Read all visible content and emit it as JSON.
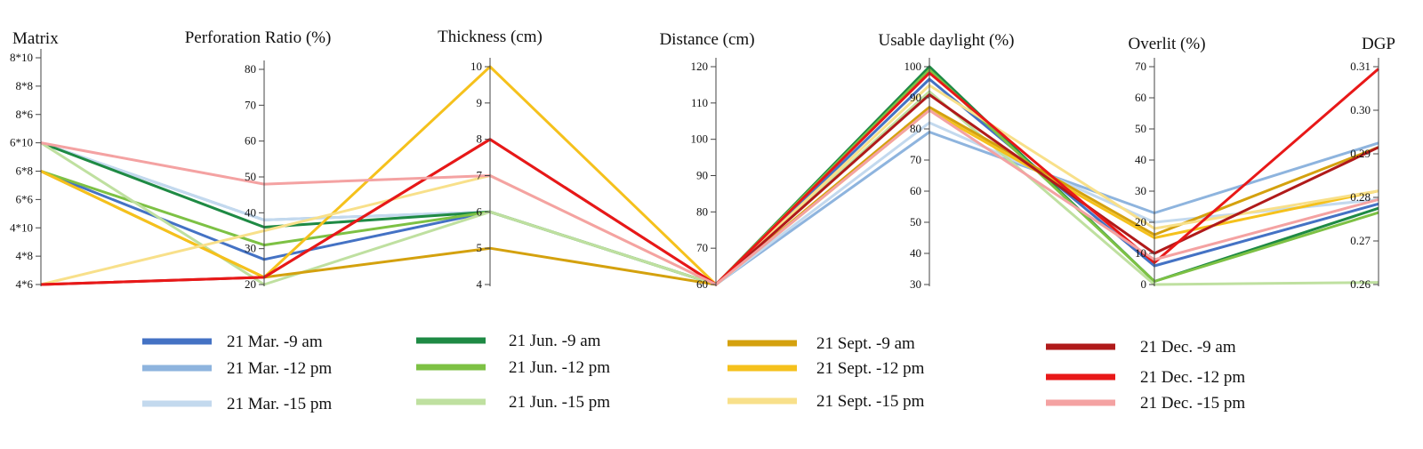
{
  "chart_data": {
    "type": "parallel-coordinates",
    "axes": [
      {
        "title": "Matrix",
        "kind": "category",
        "ticks": [
          "8*10",
          "8*8",
          "8*6",
          "6*10",
          "6*8",
          "6*6",
          "4*10",
          "4*8",
          "4*6"
        ]
      },
      {
        "title": "Perforation Ratio (%)",
        "kind": "numeric",
        "range": [
          20,
          80
        ],
        "ticks": [
          "80",
          "70",
          "60",
          "50",
          "40",
          "30",
          "20"
        ]
      },
      {
        "title": "Thickness (cm)",
        "kind": "numeric",
        "range": [
          4,
          10
        ],
        "ticks": [
          "10",
          "9",
          "8",
          "7",
          "6",
          "5",
          "4"
        ]
      },
      {
        "title": "Distance (cm)",
        "kind": "numeric",
        "range": [
          60,
          120
        ],
        "ticks": [
          "120",
          "110",
          "100",
          "90",
          "80",
          "70",
          "60"
        ]
      },
      {
        "title": "Usable daylight (%)",
        "kind": "numeric",
        "range": [
          30,
          100
        ],
        "ticks": [
          "100",
          "90",
          "80",
          "70",
          "60",
          "50",
          "40",
          "30"
        ]
      },
      {
        "title": "Overlit (%)",
        "kind": "numeric",
        "range": [
          0,
          70
        ],
        "ticks": [
          "70",
          "60",
          "50",
          "40",
          "30",
          "20",
          "10",
          "0"
        ]
      },
      {
        "title": "DGP",
        "kind": "numeric",
        "range": [
          0.26,
          0.31
        ],
        "ticks": [
          "0.31",
          "0.30",
          "0.29",
          "0.28",
          "0.27",
          "0.26"
        ]
      }
    ],
    "series": [
      {
        "name": "21 Mar. -9 am",
        "color": "#4472c4",
        "values": [
          4,
          27,
          6,
          60,
          96,
          6,
          0.2785
        ]
      },
      {
        "name": "21 Mar. -12 pm",
        "color": "#8eb4de",
        "values": [
          5,
          38,
          6,
          60,
          79,
          23,
          0.2925
        ]
      },
      {
        "name": "21 Mar. -15 pm",
        "color": "#c3d9ee",
        "values": [
          5,
          38,
          6,
          60,
          82,
          20,
          0.2795
        ]
      },
      {
        "name": "21 Jun. -9 am",
        "color": "#1e8a44",
        "values": [
          5,
          36,
          6,
          60,
          100,
          1,
          0.2775
        ]
      },
      {
        "name": "21 Jun. -12 pm",
        "color": "#7dc144",
        "values": [
          4,
          31,
          6,
          60,
          99,
          1,
          0.2765
        ]
      },
      {
        "name": "21 Jun. -15 pm",
        "color": "#bfe0a0",
        "values": [
          5,
          20,
          6,
          60,
          92,
          0,
          0.2605
        ]
      },
      {
        "name": "21 Sept. -9 am",
        "color": "#d4a10e",
        "values": [
          4,
          22,
          5,
          60,
          87,
          16,
          0.2915
        ]
      },
      {
        "name": "21 Sept. -12 pm",
        "color": "#f5c11c",
        "values": [
          4,
          22,
          10,
          60,
          86,
          15,
          0.2815
        ]
      },
      {
        "name": "21 Sept. -15 pm",
        "color": "#f8e08a",
        "values": [
          0,
          35,
          7,
          60,
          94,
          18,
          0.2815
        ]
      },
      {
        "name": "21 Dec. -9 am",
        "color": "#b01a1a",
        "values": [
          0,
          22,
          8,
          60,
          91,
          10,
          0.2915
        ]
      },
      {
        "name": "21 Dec. -12 pm",
        "color": "#e81818",
        "values": [
          0,
          22,
          8,
          60,
          98,
          7,
          0.3095
        ]
      },
      {
        "name": "21 Dec. -15 pm",
        "color": "#f4a2a2",
        "values": [
          5,
          48,
          7,
          60,
          86,
          8,
          0.2795
        ]
      }
    ],
    "legend_placement": "bottom"
  }
}
